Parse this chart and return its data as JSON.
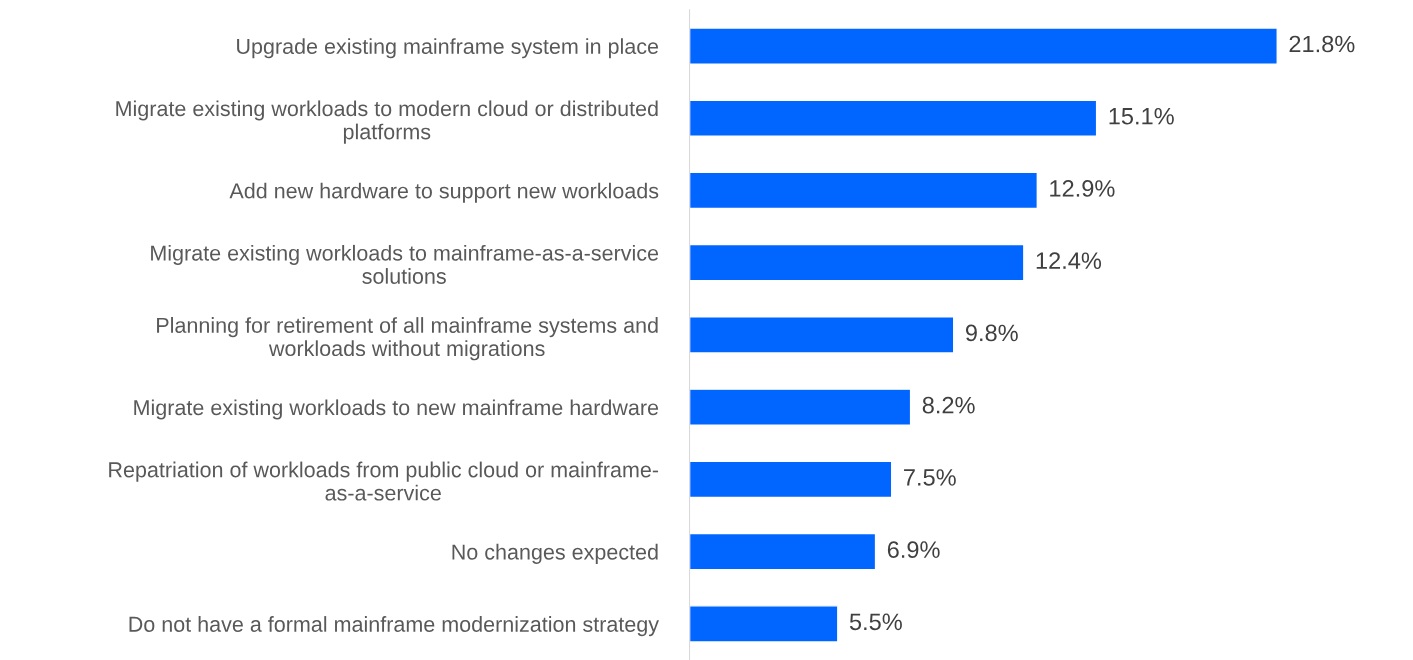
{
  "chart_data": {
    "type": "bar",
    "orientation": "horizontal",
    "categories": [
      "Upgrade existing mainframe system in place",
      "Migrate existing workloads to modern cloud or distributed\nplatforms",
      "Add new hardware to support new workloads",
      "Migrate existing workloads to mainframe-as-a-service\nsolutions",
      "Planning for retirement of all mainframe systems and\nworkloads without migrations",
      "Migrate existing workloads to new mainframe hardware",
      "Repatriation of workloads from public cloud or mainframe-\nas-a-service",
      "No changes expected",
      "Do not have a formal mainframe modernization strategy"
    ],
    "values": [
      21.8,
      15.1,
      12.9,
      12.4,
      9.8,
      8.2,
      7.5,
      6.9,
      5.5
    ],
    "value_labels": [
      "21.8%",
      "15.1%",
      "12.9%",
      "12.4%",
      "9.8%",
      "8.2%",
      "7.5%",
      "6.9%",
      "5.5%"
    ],
    "color": "#0066ff"
  }
}
